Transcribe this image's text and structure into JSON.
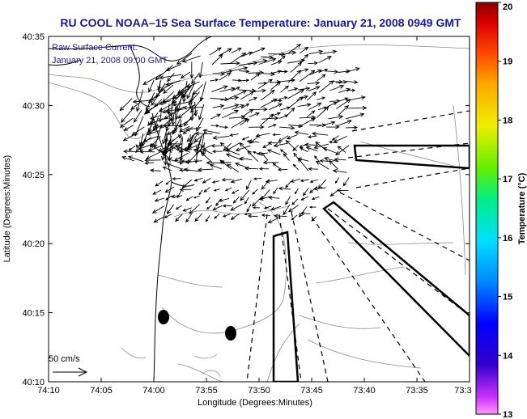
{
  "chart_data": {
    "type": "map",
    "title": "RU COOL  NOAA–15  Sea Surface Temperature:  January 21, 2008 0949 GMT",
    "subtitle_lines": [
      "Raw Surface Current:",
      "January 21, 2008 09:00 GMT"
    ],
    "xlabel": "Longitude (Degrees:Minutes)",
    "ylabel": "Latitude (Degrees:Minutes)",
    "x_ticks": [
      "74:10",
      "74:05",
      "74:00",
      "73:55",
      "73:50",
      "73:45",
      "73:40",
      "73:35",
      "73:3"
    ],
    "y_ticks": [
      "40:35",
      "40:30",
      "40:25",
      "40:20",
      "40:15",
      "40:10"
    ],
    "xlim_minutes_west": [
      10,
      30
    ],
    "ylim_minutes_north": [
      10,
      35
    ],
    "scale_label": "50 cm/s",
    "colorbar": {
      "label": "Temperature (°C)",
      "ticks": [
        "20",
        "19",
        "18",
        "17",
        "16",
        "15",
        "14",
        "13"
      ],
      "range": [
        13,
        20
      ]
    },
    "grid": false
  },
  "colors": {
    "title": "#1a1a8c",
    "vectors": "#000000",
    "coast": "#000000",
    "bathymetry": "#8c8c8c"
  }
}
